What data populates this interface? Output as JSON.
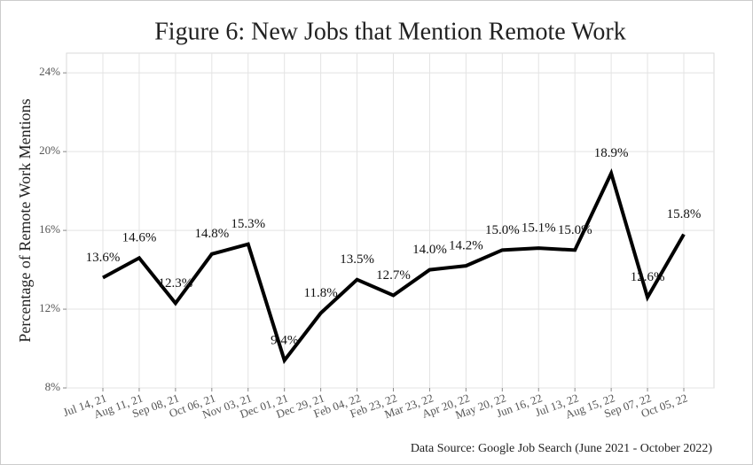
{
  "chart_data": {
    "type": "line",
    "title": "Figure 6: New Jobs that Mention Remote Work",
    "y_label": "Percentage of Remote Work Mentions",
    "source": "Data Source: Google Job Search (June 2021 - October 2022)",
    "categories": [
      "Jul 14, 21",
      "Aug 11, 21",
      "Sep 08, 21",
      "Oct 06, 21",
      "Nov 03, 21",
      "Dec 01, 21",
      "Dec 29, 21",
      "Feb 04, 22",
      "Feb 23, 22",
      "Mar 23, 22",
      "Apr 20, 22",
      "May 20, 22",
      "Jun 16, 22",
      "Jul 13, 22",
      "Aug 15, 22",
      "Sep 07, 22",
      "Oct 05, 22"
    ],
    "values": [
      13.6,
      14.6,
      12.3,
      14.8,
      15.3,
      9.4,
      11.8,
      13.5,
      12.7,
      14.0,
      14.2,
      15.0,
      15.1,
      15.0,
      18.9,
      12.6,
      15.8
    ],
    "value_labels": [
      "13.6%",
      "14.6%",
      "12.3%",
      "14.8%",
      "15.3%",
      "9.4%",
      "11.8%",
      "13.5%",
      "12.7%",
      "14.0%",
      "14.2%",
      "15.0%",
      "15.1%",
      "15.0%",
      "18.9%",
      "12.6%",
      "15.8%"
    ],
    "color": "#000000",
    "ylim": [
      8,
      25
    ],
    "yticks": [
      {
        "value": 8,
        "label": "8%"
      },
      {
        "value": 12,
        "label": "12%"
      },
      {
        "value": 16,
        "label": "16%"
      },
      {
        "value": 20,
        "label": "20%"
      },
      {
        "value": 24,
        "label": "24%"
      }
    ],
    "grid": true
  }
}
